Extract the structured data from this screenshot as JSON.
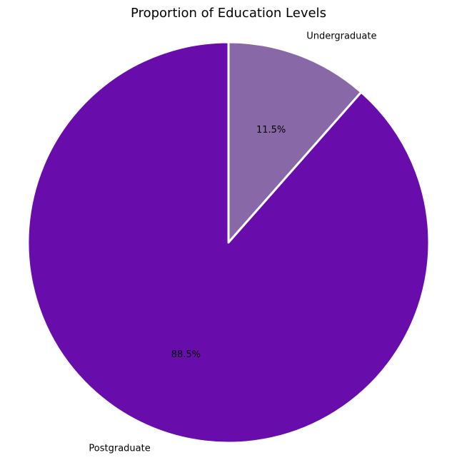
{
  "chart_data": {
    "type": "pie",
    "title": "Proportion of Education Levels",
    "slices": [
      {
        "label": "Undergraduate",
        "value": 11.5,
        "pct_label": "11.5%",
        "color": "#8968a8"
      },
      {
        "label": "Postgraduate",
        "value": 88.5,
        "pct_label": "88.5%",
        "color": "#680cac"
      }
    ],
    "start_angle_deg": 90,
    "direction": "clockwise",
    "edge_color": "#ffffff",
    "legend": "none"
  }
}
